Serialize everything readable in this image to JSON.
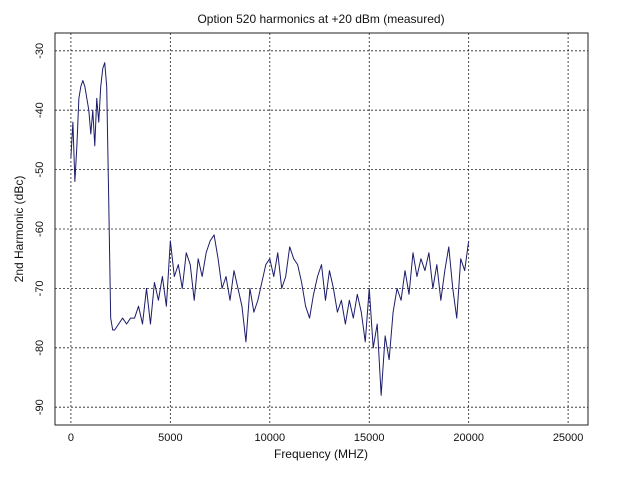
{
  "chart_data": {
    "type": "line",
    "title": "Option 520 harmonics at +20 dBm (measured)",
    "x_label": "Frequency (MHZ)",
    "y_label": "2nd Harmonic (dBc)",
    "x": [
      0,
      100,
      200,
      300,
      400,
      500,
      600,
      700,
      800,
      900,
      1000,
      1100,
      1200,
      1300,
      1400,
      1500,
      1600,
      1700,
      1800,
      1900,
      2000,
      2100,
      2200,
      2400,
      2600,
      2800,
      3000,
      3200,
      3400,
      3600,
      3800,
      4000,
      4200,
      4400,
      4600,
      4800,
      5000,
      5200,
      5400,
      5600,
      5800,
      6000,
      6200,
      6400,
      6600,
      6800,
      7000,
      7200,
      7400,
      7600,
      7800,
      8000,
      8200,
      8400,
      8600,
      8800,
      9000,
      9200,
      9400,
      9600,
      9800,
      10000,
      10200,
      10400,
      10600,
      10800,
      11000,
      11200,
      11400,
      11600,
      11800,
      12000,
      12200,
      12400,
      12600,
      12800,
      13000,
      13200,
      13400,
      13600,
      13800,
      14000,
      14200,
      14400,
      14600,
      14800,
      15000,
      15200,
      15400,
      15600,
      15800,
      16000,
      16200,
      16400,
      16600,
      16800,
      17000,
      17200,
      17400,
      17600,
      17800,
      18000,
      18200,
      18400,
      18600,
      18800,
      19000,
      19200,
      19400,
      19600,
      19800,
      20000
    ],
    "series": [
      {
        "name": "2nd Harmonic",
        "color": "#1c1c6b",
        "values": [
          -48,
          -42,
          -52,
          -46,
          -38,
          -36,
          -35,
          -36,
          -38,
          -40,
          -44,
          -40,
          -46,
          -38,
          -42,
          -36,
          -33,
          -32,
          -36,
          -55,
          -75,
          -77,
          -77,
          -76,
          -75,
          -76,
          -75,
          -75,
          -73,
          -76,
          -70,
          -76,
          -69,
          -72,
          -68,
          -73,
          -62,
          -68,
          -66,
          -70,
          -64,
          -66,
          -72,
          -65,
          -68,
          -64,
          -62,
          -61,
          -65,
          -70,
          -68,
          -72,
          -67,
          -70,
          -73,
          -79,
          -70,
          -74,
          -72,
          -69,
          -66,
          -65,
          -68,
          -64,
          -70,
          -68,
          -63,
          -65,
          -66,
          -69,
          -73,
          -75,
          -71,
          -68,
          -66,
          -72,
          -67,
          -70,
          -74,
          -72,
          -76,
          -72,
          -75,
          -71,
          -74,
          -79,
          -70,
          -80,
          -76,
          -88,
          -78,
          -82,
          -74,
          -70,
          -72,
          -67,
          -71,
          -64,
          -68,
          -65,
          -67,
          -64,
          -70,
          -66,
          -72,
          -67,
          -63,
          -70,
          -75,
          -65,
          -67,
          -62
        ]
      }
    ],
    "xlim": [
      -800,
      26000
    ],
    "ylim": [
      -93,
      -27
    ],
    "xticks": [
      0,
      5000,
      10000,
      15000,
      20000,
      25000
    ],
    "yticks": [
      -30,
      -40,
      -50,
      -60,
      -70,
      -80,
      -90
    ],
    "grid": true
  }
}
